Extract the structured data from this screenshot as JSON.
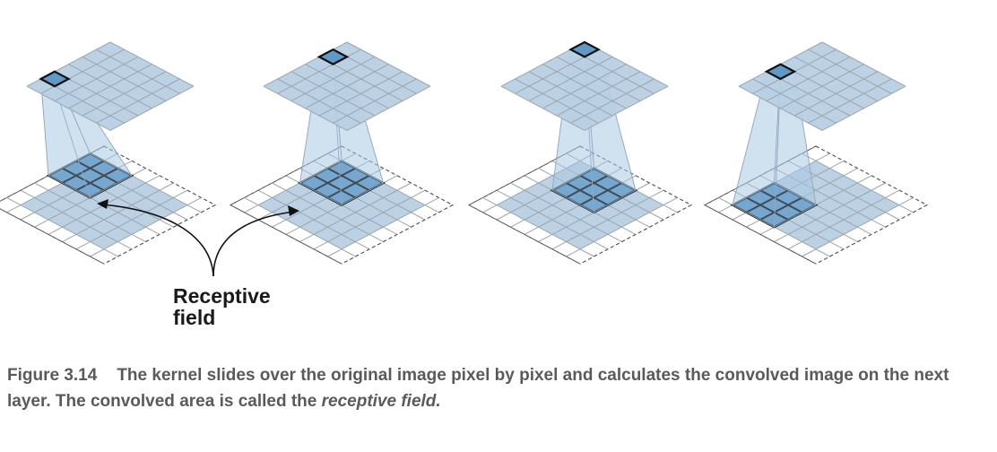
{
  "diagram": {
    "label_line1": "Receptive",
    "label_line2": "field"
  },
  "caption": {
    "figure_number": "Figure 3.14",
    "text_part1": "The kernel slides over the original image pixel by pixel and calculates the convolved image on the next layer. The convolved area is called the",
    "text_italic": "receptive field.",
    "text_part2": ""
  },
  "colors": {
    "cell_fill": "#b8cfe3",
    "cell_stroke": "#9aa6b0",
    "highlight_fill": "#5f99c7",
    "highlight_stroke": "#111111",
    "pyramid_fill": "#a9c7e2",
    "caption_text": "#5a5a5a"
  }
}
